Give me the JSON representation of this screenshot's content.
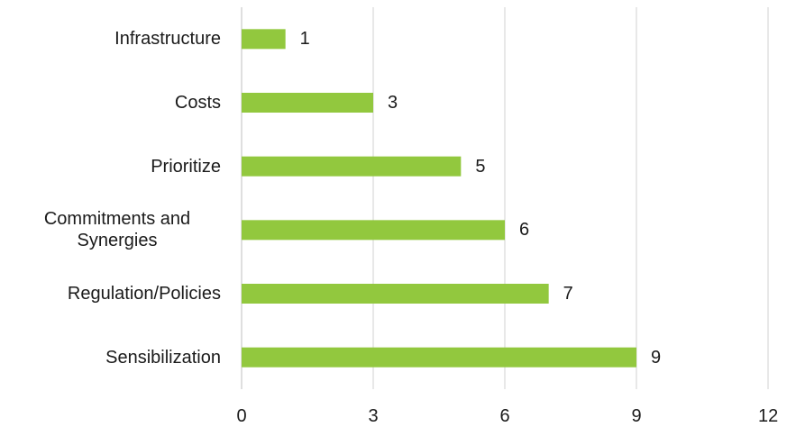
{
  "chart_data": {
    "type": "bar",
    "orientation": "horizontal",
    "categories": [
      "Infrastructure",
      "Costs",
      "Prioritize",
      "Commitments and Synergies",
      "Regulation/Policies",
      "Sensibilization"
    ],
    "values": [
      1,
      3,
      5,
      6,
      7,
      9
    ],
    "color": "#92c83e",
    "xlim": [
      0,
      12
    ],
    "xticks": [
      0,
      3,
      6,
      9,
      12
    ],
    "grid": true
  }
}
